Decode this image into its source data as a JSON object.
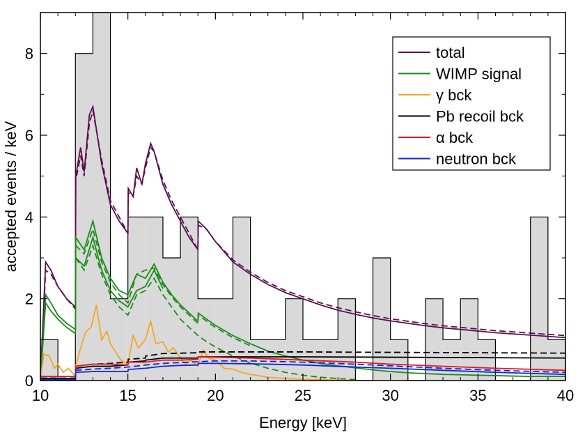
{
  "chart_data": {
    "type": "line",
    "title": "",
    "xlabel": "Energy [keV]",
    "ylabel": "accepted events / keV",
    "xlim": [
      10,
      40
    ],
    "ylim": [
      0,
      9
    ],
    "x_ticks": [
      10,
      15,
      20,
      25,
      30,
      35,
      40
    ],
    "y_ticks": [
      0,
      2,
      4,
      6,
      8
    ],
    "x_tick_labels": [
      "10",
      "15",
      "20",
      "25",
      "30",
      "35",
      "40"
    ],
    "y_tick_labels": [
      "0",
      "2",
      "4",
      "6",
      "8"
    ],
    "histogram": {
      "name": "data",
      "fill": "#d9d9d9",
      "edges": [
        10,
        11,
        12,
        13,
        14,
        15,
        16,
        17,
        18,
        19,
        20,
        21,
        22,
        23,
        24,
        25,
        26,
        27,
        28,
        29,
        30,
        31,
        32,
        33,
        34,
        35,
        36,
        37,
        38,
        39,
        40
      ],
      "counts": [
        1,
        0,
        8,
        9,
        2,
        4,
        4,
        3,
        4,
        2,
        2,
        4,
        1,
        1,
        2,
        1,
        1,
        2,
        0,
        3,
        1,
        0,
        2,
        1,
        2,
        1,
        0,
        0,
        4,
        1
      ]
    },
    "series": [
      {
        "name": "total",
        "color": "#5a0f50",
        "style": "solid",
        "x": [
          10,
          10.3,
          10.6,
          11,
          11.5,
          12,
          12.02,
          12.3,
          12.5,
          12.8,
          13,
          13.5,
          14,
          14.5,
          15,
          15.02,
          15.3,
          15.5,
          15.8,
          16,
          16.3,
          16.5,
          17,
          17.5,
          18,
          18.5,
          19,
          19.02,
          19.5,
          20,
          21,
          22,
          23,
          24,
          25,
          26,
          27,
          28,
          29,
          30,
          31,
          32,
          33,
          34,
          35,
          36,
          37,
          38,
          39,
          40
        ],
        "y": [
          0,
          2.9,
          2.7,
          2.3,
          2.0,
          1.8,
          5.0,
          5.7,
          5.1,
          6.5,
          6.7,
          5.3,
          4.3,
          3.9,
          3.6,
          4.7,
          4.5,
          5.2,
          4.8,
          5.3,
          5.8,
          5.6,
          4.8,
          4.3,
          3.9,
          3.5,
          3.2,
          3.9,
          3.7,
          3.4,
          2.9,
          2.6,
          2.35,
          2.15,
          2.0,
          1.85,
          1.72,
          1.62,
          1.53,
          1.46,
          1.4,
          1.34,
          1.29,
          1.25,
          1.21,
          1.17,
          1.14,
          1.11,
          1.08,
          1.05
        ]
      },
      {
        "name": "total-dashed",
        "color": "#5a0f50",
        "style": "dashed",
        "x": [
          10,
          10.3,
          10.6,
          11,
          11.5,
          12,
          12.02,
          12.3,
          12.5,
          12.8,
          13,
          13.5,
          14,
          14.5,
          15,
          15.02,
          15.3,
          15.5,
          15.8,
          16,
          16.3,
          16.5,
          17,
          17.5,
          18,
          18.5,
          19,
          19.02,
          19.5,
          20,
          21,
          22,
          23,
          24,
          25,
          26,
          27,
          28,
          29,
          30,
          31,
          32,
          33,
          34,
          35,
          36,
          37,
          38,
          39,
          40
        ],
        "y": [
          0,
          2.7,
          2.6,
          2.3,
          2.0,
          1.75,
          4.9,
          5.5,
          5.0,
          6.3,
          6.6,
          5.4,
          4.4,
          4.0,
          3.6,
          4.6,
          4.5,
          5.0,
          4.8,
          5.2,
          5.7,
          5.6,
          4.9,
          4.4,
          4.0,
          3.6,
          3.2,
          3.8,
          3.7,
          3.4,
          2.95,
          2.65,
          2.4,
          2.2,
          2.05,
          1.9,
          1.78,
          1.68,
          1.59,
          1.51,
          1.45,
          1.39,
          1.34,
          1.3,
          1.26,
          1.22,
          1.19,
          1.16,
          1.13,
          1.1
        ]
      },
      {
        "name": "WIMP signal",
        "color": "#1a8c1a",
        "style": "solid",
        "x": [
          10,
          10.3,
          10.6,
          11,
          11.5,
          12,
          12.02,
          12.5,
          13,
          13.5,
          14,
          14.5,
          15,
          15.5,
          16,
          16.5,
          17,
          17.5,
          18,
          18.5,
          19,
          19.02,
          19.5,
          20,
          21,
          22,
          23,
          24,
          25,
          26,
          27,
          28,
          29,
          30,
          31,
          32,
          33,
          34,
          35,
          36,
          37,
          38,
          39,
          40
        ],
        "y": [
          0,
          2.1,
          1.9,
          1.6,
          1.4,
          1.25,
          3.5,
          3.2,
          3.9,
          3.0,
          2.5,
          2.2,
          2.1,
          2.6,
          2.5,
          2.85,
          2.4,
          2.1,
          1.85,
          1.65,
          1.45,
          1.65,
          1.5,
          1.35,
          1.1,
          0.9,
          0.72,
          0.6,
          0.5,
          0.42,
          0.36,
          0.31,
          0.26,
          0.22,
          0.19,
          0.17,
          0.15,
          0.14,
          0.13,
          0.12,
          0.11,
          0.1,
          0.1,
          0.1
        ]
      },
      {
        "name": "WIMP-dashed-upper",
        "color": "#1a8c1a",
        "style": "dashed",
        "x": [
          12.02,
          12.5,
          13,
          13.5,
          14,
          14.5,
          15,
          15.5,
          16,
          16.5,
          17,
          17.5,
          18,
          18.5,
          19,
          19.02,
          19.5,
          20,
          21,
          22
        ],
        "y": [
          3.3,
          3.1,
          3.7,
          2.9,
          2.4,
          2.1,
          1.9,
          2.6,
          2.7,
          2.75,
          2.35,
          2.05,
          1.8,
          1.6,
          1.4,
          1.6,
          1.45,
          1.3,
          1.05,
          0.85
        ]
      },
      {
        "name": "WIMP-lower",
        "color": "#1a8c1a",
        "style": "solid",
        "x": [
          10,
          10.3,
          10.6,
          11,
          11.5,
          12,
          12.02,
          12.5,
          13,
          13.5,
          14,
          14.5,
          15,
          15.5,
          16,
          16.5,
          17
        ],
        "y": [
          0,
          1.9,
          1.7,
          1.5,
          1.3,
          1.15,
          3.0,
          2.8,
          3.5,
          2.7,
          2.2,
          1.95,
          1.8,
          2.2,
          2.3,
          2.7,
          2.25
        ]
      },
      {
        "name": "WIMP-dashed",
        "color": "#1a8c1a",
        "style": "dashed",
        "x": [
          12.02,
          12.5,
          13,
          13.5,
          14,
          14.5,
          15,
          15.5,
          16,
          16.5,
          17,
          17.5,
          18,
          18.5,
          19,
          19.5,
          20,
          21,
          22,
          23,
          24,
          25,
          26,
          27,
          28
        ],
        "y": [
          3.0,
          2.7,
          3.3,
          2.6,
          2.1,
          1.8,
          1.6,
          2.1,
          2.2,
          2.5,
          2.1,
          1.8,
          1.5,
          1.3,
          1.1,
          0.95,
          0.82,
          0.6,
          0.43,
          0.3,
          0.2,
          0.13,
          0.08,
          0.05,
          0.02
        ]
      },
      {
        "name": "γ bck",
        "color": "#f5a623",
        "style": "solid",
        "x": [
          10,
          10.2,
          10.5,
          10.8,
          11,
          11.3,
          11.6,
          12,
          12.02,
          12.3,
          12.6,
          12.9,
          13.2,
          13.5,
          13.8,
          14,
          14.3,
          14.6,
          15,
          15.3,
          15.6,
          16,
          16.3,
          16.6,
          17,
          17.3,
          17.6,
          18,
          18.3,
          18.6,
          19,
          19.3,
          19.6,
          20,
          20.5,
          21,
          21.5,
          22,
          22.5,
          23,
          24,
          25,
          26,
          27,
          28
        ],
        "y": [
          0,
          0.65,
          0.6,
          0.3,
          0.4,
          0.2,
          0.3,
          0.1,
          0.35,
          0.8,
          1.2,
          1.3,
          1.85,
          1.0,
          1.2,
          0.9,
          0.7,
          0.5,
          0.4,
          1.1,
          0.8,
          1.0,
          1.45,
          0.9,
          0.95,
          0.7,
          0.8,
          0.55,
          0.4,
          0.5,
          0.35,
          0.75,
          0.55,
          0.5,
          0.3,
          0.28,
          0.2,
          0.15,
          0.12,
          0.08,
          0.05,
          0.03,
          0.02,
          0.01,
          0.0
        ]
      },
      {
        "name": "Pb recoil bck",
        "color": "#000000",
        "style": "solid",
        "x": [
          10,
          12,
          12.02,
          13,
          14,
          15,
          15.02,
          16,
          16.02,
          17,
          18,
          19,
          19.02,
          20,
          25,
          30,
          35,
          40
        ],
        "y": [
          0.05,
          0.05,
          0.3,
          0.35,
          0.35,
          0.38,
          0.45,
          0.48,
          0.5,
          0.55,
          0.55,
          0.55,
          0.58,
          0.58,
          0.58,
          0.57,
          0.56,
          0.55
        ]
      },
      {
        "name": "Pb-dashed",
        "color": "#000000",
        "style": "dashed",
        "x": [
          10,
          12,
          12.02,
          13,
          14,
          15,
          15.02,
          16,
          16.02,
          17,
          18,
          19,
          19.02,
          20,
          25,
          30,
          35,
          40
        ],
        "y": [
          0.06,
          0.06,
          0.35,
          0.4,
          0.42,
          0.45,
          0.52,
          0.55,
          0.6,
          0.66,
          0.67,
          0.68,
          0.7,
          0.7,
          0.7,
          0.69,
          0.68,
          0.67
        ]
      },
      {
        "name": "α bck",
        "color": "#e8161b",
        "style": "solid",
        "x": [
          10,
          12,
          12.02,
          13,
          14,
          15,
          15.02,
          16,
          17,
          18,
          19,
          19.02,
          20,
          22,
          25,
          28,
          30,
          33,
          36,
          40
        ],
        "y": [
          0.1,
          0.1,
          0.35,
          0.4,
          0.4,
          0.38,
          0.45,
          0.45,
          0.5,
          0.5,
          0.52,
          0.58,
          0.57,
          0.55,
          0.5,
          0.45,
          0.4,
          0.35,
          0.3,
          0.25
        ]
      },
      {
        "name": "neutron bck",
        "color": "#1226d6",
        "style": "solid",
        "x": [
          10,
          12,
          12.02,
          13,
          14,
          15,
          15.02,
          16,
          17,
          18,
          19,
          19.02,
          20,
          22,
          25,
          28,
          30,
          33,
          36,
          40
        ],
        "y": [
          0.02,
          0.02,
          0.2,
          0.22,
          0.22,
          0.22,
          0.27,
          0.3,
          0.35,
          0.37,
          0.38,
          0.42,
          0.42,
          0.41,
          0.38,
          0.33,
          0.3,
          0.25,
          0.2,
          0.15
        ]
      },
      {
        "name": "neutron-dashed",
        "color": "#1226d6",
        "style": "dashed",
        "x": [
          12,
          13,
          14,
          15,
          16,
          17,
          18,
          19,
          20,
          22,
          25,
          28,
          30,
          33,
          36,
          40
        ],
        "y": [
          0.25,
          0.28,
          0.3,
          0.33,
          0.38,
          0.42,
          0.44,
          0.46,
          0.48,
          0.48,
          0.45,
          0.4,
          0.36,
          0.3,
          0.25,
          0.2
        ]
      }
    ],
    "legend": {
      "placement": "top-right",
      "entries": [
        {
          "label": "total",
          "color": "#5a0f50"
        },
        {
          "label": "WIMP signal",
          "color": "#1a8c1a"
        },
        {
          "label": "γ bck",
          "color": "#f5a623"
        },
        {
          "label": "Pb recoil bck",
          "color": "#000000"
        },
        {
          "label": "α bck",
          "color": "#e8161b"
        },
        {
          "label": "neutron bck",
          "color": "#1226d6"
        }
      ]
    }
  }
}
